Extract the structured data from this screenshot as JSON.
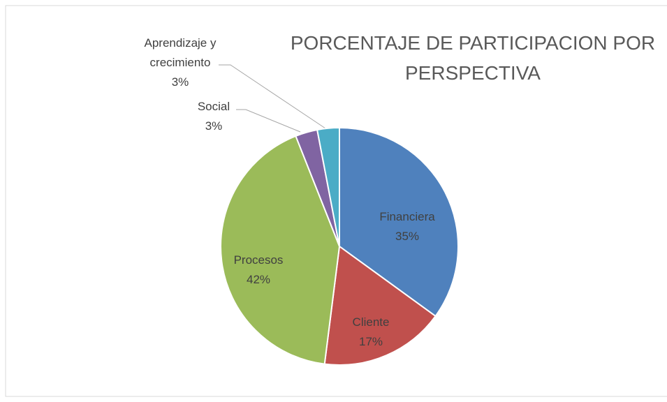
{
  "chart_data": {
    "type": "pie",
    "title": "PORCENTAJE DE PARTICIPACION POR PERSPECTIVA",
    "categories": [
      "Financiera",
      "Cliente",
      "Procesos",
      "Social",
      "Aprendizaje y crecimiento"
    ],
    "values": [
      35,
      17,
      42,
      3,
      3
    ],
    "value_labels": [
      "35%",
      "17%",
      "42%",
      "3%",
      "3%"
    ],
    "colors": [
      "#4f81bd",
      "#c0504d",
      "#9bbb59",
      "#8064a2",
      "#4bacc6"
    ]
  }
}
